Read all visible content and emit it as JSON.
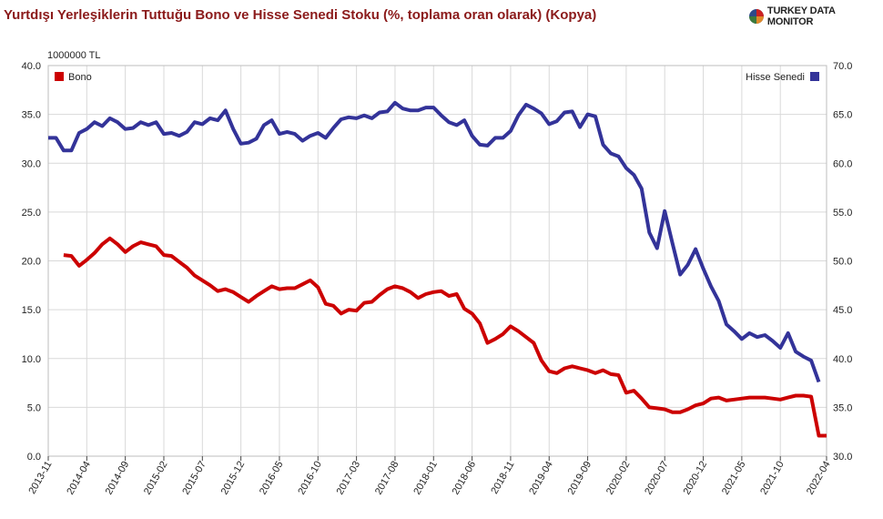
{
  "title": "Yurtdışı Yerleşiklerin Tuttuğu Bono ve Hisse Senedi Stoku (%, toplama oran olarak) (Kopya)",
  "brand": "TURKEY DATA MONITOR",
  "colors": {
    "bono": "#cc0000",
    "hisse": "#333399",
    "title": "#8b1a1a"
  },
  "chart_data": {
    "type": "line",
    "y_unit_label": "1000000 TL",
    "grid": true,
    "left_axis": {
      "ylim": [
        0,
        40
      ],
      "ticks": [
        "0.0",
        "5.0",
        "10.0",
        "15.0",
        "20.0",
        "25.0",
        "30.0",
        "35.0",
        "40.0"
      ]
    },
    "right_axis": {
      "ylim": [
        30,
        70
      ],
      "ticks": [
        "30.0",
        "35.0",
        "40.0",
        "45.0",
        "50.0",
        "55.0",
        "60.0",
        "65.0",
        "70.0"
      ]
    },
    "x_tick_labels": [
      "2013-11",
      "2014-04",
      "2014-09",
      "2015-02",
      "2015-07",
      "2015-12",
      "2016-05",
      "2016-10",
      "2017-03",
      "2017-08",
      "2018-01",
      "2018-06",
      "2018-11",
      "2019-04",
      "2019-09",
      "2020-02",
      "2020-07",
      "2020-12",
      "2021-05",
      "2021-10",
      "2022-04"
    ],
    "x_start": "2013-11",
    "legend": {
      "left": "top-left",
      "right": "top-right"
    },
    "series": [
      {
        "name": "Bono",
        "axis": "left",
        "color": "#cc0000",
        "start": "2014-01",
        "values": [
          20.6,
          20.5,
          19.5,
          20.1,
          20.8,
          21.7,
          22.3,
          21.7,
          20.9,
          21.5,
          21.9,
          21.7,
          21.5,
          20.6,
          20.5,
          19.9,
          19.3,
          18.5,
          18.0,
          17.5,
          16.9,
          17.1,
          16.8,
          16.3,
          15.8,
          16.4,
          16.9,
          17.4,
          17.1,
          17.2,
          17.2,
          17.6,
          18.0,
          17.3,
          15.6,
          15.4,
          14.6,
          15.0,
          14.9,
          15.7,
          15.8,
          16.5,
          17.1,
          17.4,
          17.2,
          16.8,
          16.2,
          16.6,
          16.8,
          16.9,
          16.4,
          16.6,
          15.1,
          14.6,
          13.6,
          11.6,
          12.0,
          12.5,
          13.3,
          12.8,
          12.2,
          11.6,
          9.8,
          8.7,
          8.5,
          9.0,
          9.2,
          9.0,
          8.8,
          8.5,
          8.8,
          8.4,
          8.3,
          6.5,
          6.7,
          5.9,
          5.0,
          4.9,
          4.8,
          4.5,
          4.5,
          4.8,
          5.2,
          5.4,
          5.9,
          6.0,
          5.7,
          5.8,
          5.9,
          6.0,
          6.0,
          6.0,
          5.9,
          5.8,
          6.0,
          6.2,
          6.2,
          6.1,
          2.1,
          2.1
        ]
      },
      {
        "name": "Hisse Senedi",
        "axis": "right",
        "color": "#333399",
        "start": "2013-11",
        "values": [
          62.6,
          62.6,
          61.3,
          61.3,
          63.1,
          63.5,
          64.2,
          63.8,
          64.6,
          64.2,
          63.5,
          63.6,
          64.2,
          63.9,
          64.2,
          63.0,
          63.1,
          62.8,
          63.2,
          64.2,
          64.0,
          64.6,
          64.4,
          65.4,
          63.5,
          62.0,
          62.1,
          62.5,
          63.9,
          64.4,
          63.0,
          63.2,
          63.0,
          62.3,
          62.8,
          63.1,
          62.6,
          63.6,
          64.5,
          64.7,
          64.6,
          64.9,
          64.6,
          65.2,
          65.3,
          66.2,
          65.6,
          65.4,
          65.4,
          65.7,
          65.7,
          64.9,
          64.2,
          63.9,
          64.4,
          62.8,
          61.9,
          61.8,
          62.6,
          62.6,
          63.3,
          64.9,
          66.0,
          65.6,
          65.1,
          64.0,
          64.3,
          65.2,
          65.3,
          63.7,
          65.0,
          64.8,
          61.9,
          61.0,
          60.7,
          59.5,
          58.8,
          57.4,
          52.9,
          51.3,
          55.1,
          51.8,
          48.6,
          49.6,
          51.2,
          49.2,
          47.4,
          45.9,
          43.5,
          42.8,
          42.0,
          42.6,
          42.2,
          42.4,
          41.8,
          41.1,
          42.6,
          40.7,
          40.2,
          39.8,
          37.6
        ]
      }
    ]
  }
}
